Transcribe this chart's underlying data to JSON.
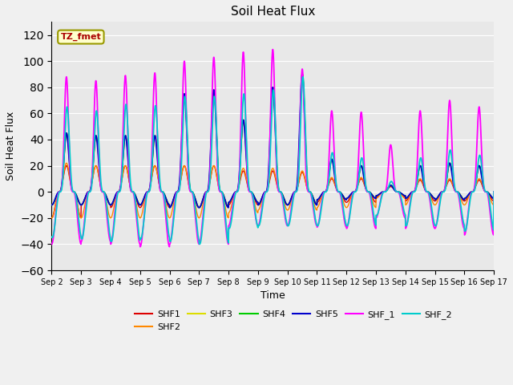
{
  "title": "Soil Heat Flux",
  "ylabel": "Soil Heat Flux",
  "xlabel": "Time",
  "ylim": [
    -60,
    130
  ],
  "yticks": [
    -60,
    -40,
    -20,
    0,
    20,
    40,
    60,
    80,
    100,
    120
  ],
  "annotation_text": "TZ_fmet",
  "series_colors": {
    "SHF1": "#dd0000",
    "SHF2": "#ff8800",
    "SHF3": "#dddd00",
    "SHF4": "#00cc00",
    "SHF5": "#0000cc",
    "SHF_1": "#ff00ff",
    "SHF_2": "#00cccc"
  },
  "xtick_labels": [
    "Sep 2",
    "Sep 3",
    "Sep 4",
    "Sep 5",
    "Sep 6",
    "Sep 7",
    "Sep 8",
    "Sep 9",
    "Sep 10",
    "Sep 11",
    "Sep 12",
    "Sep 13",
    "Sep 14",
    "Sep 15",
    "Sep 16",
    "Sep 17"
  ],
  "n_days": 15,
  "peak_days_shf345": [
    45,
    43,
    43,
    43,
    75,
    78,
    55,
    80,
    90,
    25,
    20,
    5,
    20,
    22,
    20
  ],
  "peak_days_shf1": [
    20,
    20,
    20,
    20,
    20,
    20,
    16,
    16,
    15,
    10,
    10,
    4,
    9,
    9,
    9
  ],
  "peak_days_shf2": [
    22,
    20,
    20,
    20,
    20,
    20,
    18,
    18,
    16,
    11,
    11,
    5,
    10,
    10,
    10
  ],
  "peak_days_shf_1": [
    88,
    85,
    89,
    91,
    100,
    103,
    107,
    109,
    94,
    62,
    61,
    36,
    62,
    70,
    65
  ],
  "peak_days_shf_2": [
    65,
    62,
    67,
    66,
    73,
    73,
    75,
    78,
    88,
    30,
    26,
    8,
    26,
    32,
    28
  ],
  "neg_days_shf1": [
    20,
    10,
    12,
    12,
    12,
    12,
    10,
    10,
    10,
    8,
    8,
    4,
    7,
    7,
    7
  ],
  "neg_days_shf2": [
    20,
    20,
    20,
    20,
    20,
    20,
    16,
    14,
    14,
    12,
    12,
    5,
    10,
    10,
    10
  ],
  "neg_days_shf345": [
    10,
    10,
    10,
    10,
    12,
    12,
    8,
    10,
    10,
    6,
    5,
    3,
    5,
    6,
    5
  ],
  "neg_days_shf_1": [
    40,
    38,
    40,
    42,
    40,
    40,
    26,
    26,
    26,
    27,
    28,
    20,
    28,
    28,
    33
  ],
  "neg_days_shf_2": [
    35,
    36,
    38,
    36,
    38,
    40,
    28,
    26,
    26,
    26,
    26,
    18,
    26,
    26,
    30
  ],
  "figsize": [
    6.4,
    4.8
  ],
  "dpi": 100
}
